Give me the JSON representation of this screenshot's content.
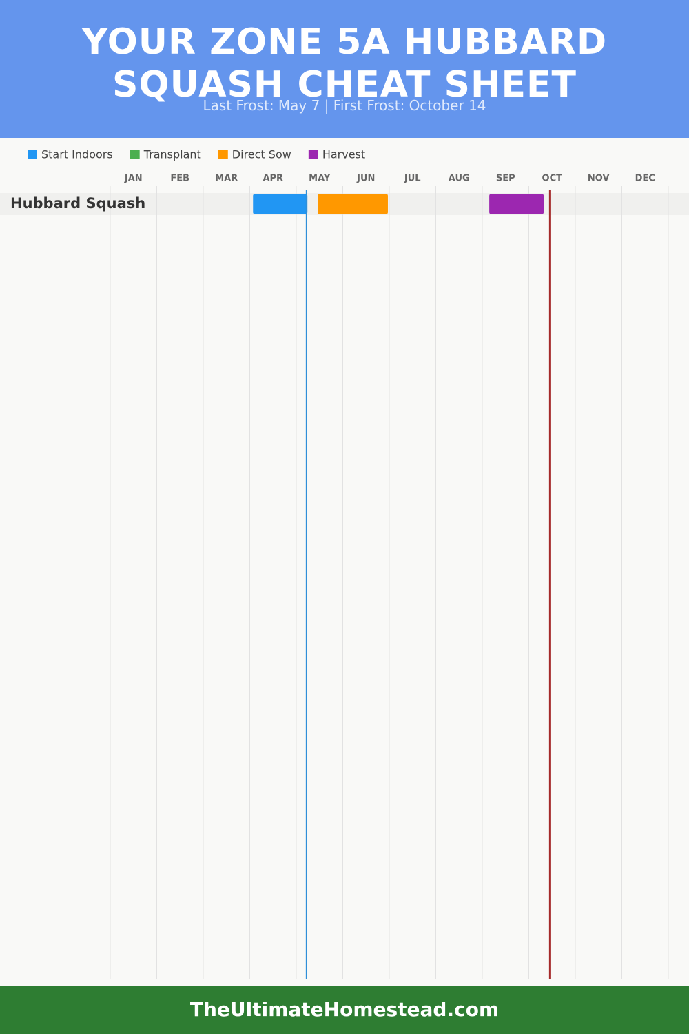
{
  "chart_data": {
    "type": "gantt",
    "title": "YOUR ZONE 5A HUBBARD SQUASH CHEAT SHEET",
    "subtitle": "Last Frost: May 7 | First Frost: October 14",
    "footer": "TheUltimateHomestead.com",
    "categories": [
      "Hubbard Squash"
    ],
    "xlim": [
      0,
      12
    ],
    "xticks": [
      {
        "value": 0,
        "label": "JAN"
      },
      {
        "value": 1,
        "label": "FEB"
      },
      {
        "value": 2,
        "label": "MAR"
      },
      {
        "value": 3,
        "label": "APR"
      },
      {
        "value": 4,
        "label": "MAY"
      },
      {
        "value": 5,
        "label": "JUN"
      },
      {
        "value": 6,
        "label": "JUL"
      },
      {
        "value": 7,
        "label": "AUG"
      },
      {
        "value": 8,
        "label": "SEP"
      },
      {
        "value": 9,
        "label": "OCT"
      },
      {
        "value": 10,
        "label": "NOV"
      },
      {
        "value": 11,
        "label": "DEC"
      }
    ],
    "grid": true,
    "series": [
      {
        "name": "Start Indoors",
        "color": "#2196f3",
        "values": [
          [
            3.07,
            4.24
          ]
        ]
      },
      {
        "name": "Transplant",
        "color": "#4caf50",
        "values": [
          null
        ]
      },
      {
        "name": "Direct Sow",
        "color": "#ff9800",
        "values": [
          [
            4.46,
            5.97
          ]
        ]
      },
      {
        "name": "Harvest",
        "color": "#9c27b0",
        "values": [
          [
            8.15,
            9.32
          ]
        ]
      }
    ],
    "frost_lines": [
      {
        "value": 4.22,
        "color": "#2f8fd8"
      },
      {
        "value": 9.45,
        "color": "#a52a2a"
      }
    ]
  }
}
